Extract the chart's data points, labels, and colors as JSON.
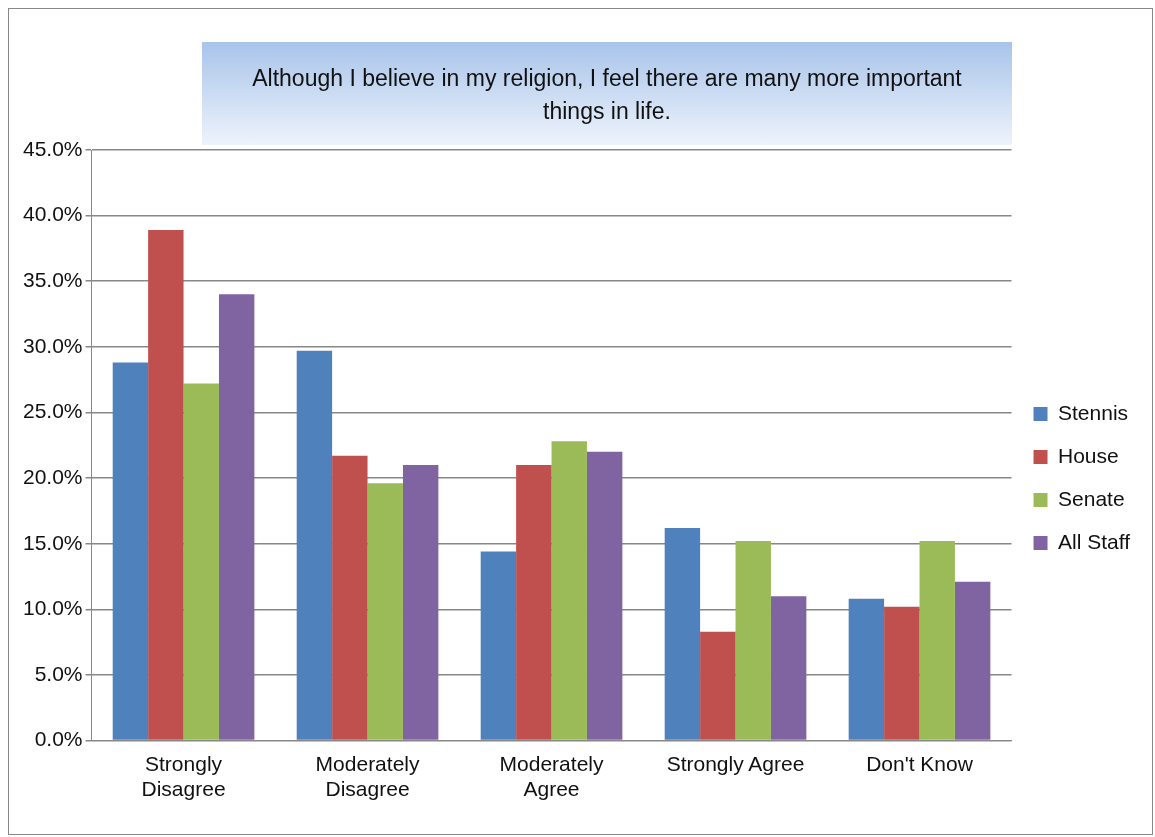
{
  "chart_data": {
    "type": "bar",
    "title": "Although I believe in my religion, I feel there are many more important things in life.",
    "categories": [
      "Strongly Disagree",
      "Moderately Disagree",
      "Moderately Agree",
      "Strongly Agree",
      "Don't Know"
    ],
    "series": [
      {
        "name": "Stennis",
        "color": "#4f81bd",
        "values": [
          28.8,
          29.7,
          14.4,
          16.2,
          10.8
        ]
      },
      {
        "name": "House",
        "color": "#c0504d",
        "values": [
          38.9,
          21.7,
          21.0,
          8.3,
          10.2
        ]
      },
      {
        "name": "Senate",
        "color": "#9bbb59",
        "values": [
          27.2,
          19.6,
          22.8,
          15.2,
          15.2
        ]
      },
      {
        "name": "All Staff",
        "color": "#8064a2",
        "values": [
          34.0,
          21.0,
          22.0,
          11.0,
          12.1
        ]
      }
    ],
    "ylim": [
      0,
      45
    ],
    "yticks": [
      {
        "value": 0,
        "label": "0.0%"
      },
      {
        "value": 5,
        "label": "5.0%"
      },
      {
        "value": 10,
        "label": "10.0%"
      },
      {
        "value": 15,
        "label": "15.0%"
      },
      {
        "value": 20,
        "label": "20.0%"
      },
      {
        "value": 25,
        "label": "25.0%"
      },
      {
        "value": 30,
        "label": "30.0%"
      },
      {
        "value": 35,
        "label": "35.0%"
      },
      {
        "value": 40,
        "label": "40.0%"
      },
      {
        "value": 45,
        "label": "45.0%"
      }
    ],
    "grid": "y",
    "legend": "right"
  }
}
